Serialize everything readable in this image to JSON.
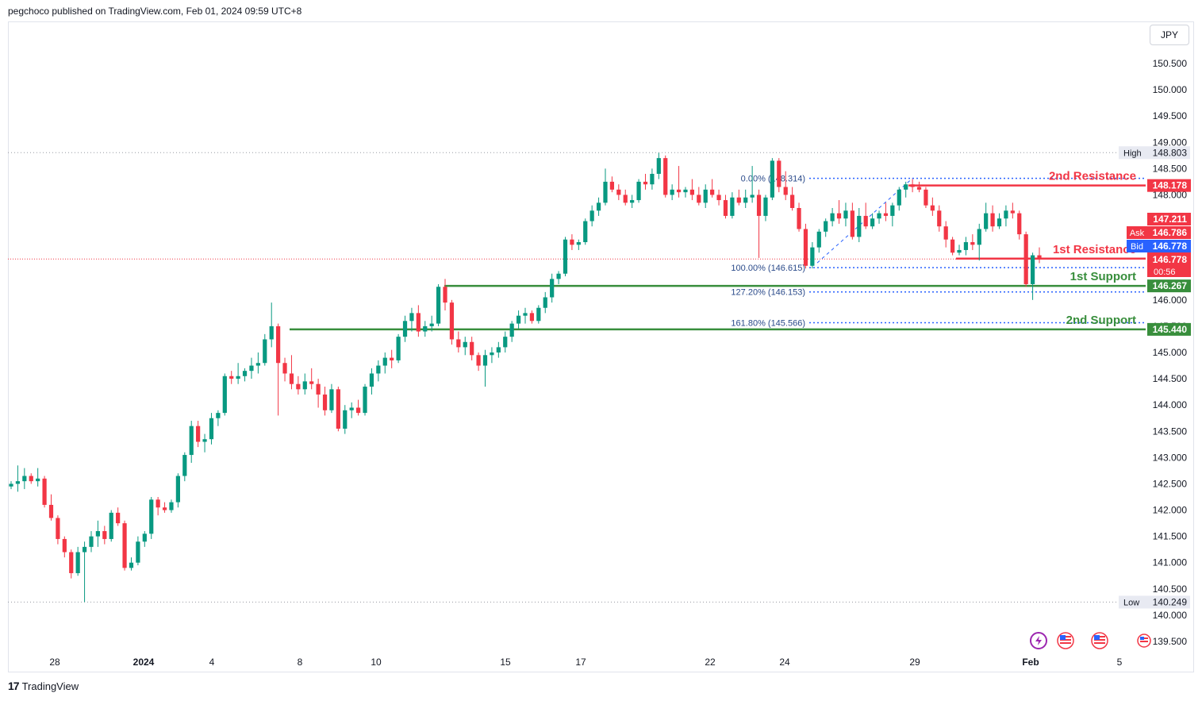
{
  "header": {
    "title": "pegchoco published on TradingView.com, Feb 01, 2024 09:59 UTC+8"
  },
  "currency_label": "JPY",
  "footer": {
    "brand": "TradingView",
    "logo": "17"
  },
  "colors": {
    "up": "#089981",
    "down": "#f23645",
    "support": "#388e3c",
    "resistance": "#f23645",
    "fib": "#2962ff",
    "bid": "#2962ff"
  },
  "icons": [
    "lightning-icon",
    "us-flag-icon",
    "us-flag-icon",
    "us-flag-icon"
  ],
  "chart_data": {
    "type": "candlestick",
    "symbol_currency": "JPY",
    "y_ticks": [
      139.5,
      140.0,
      140.5,
      141.0,
      141.5,
      142.0,
      142.5,
      143.0,
      143.5,
      144.0,
      144.5,
      145.0,
      145.5,
      146.0,
      146.5,
      147.0,
      147.5,
      148.0,
      148.5,
      149.0,
      149.5,
      150.0,
      150.5
    ],
    "y_tick_labels": [
      "139.500",
      "140.000",
      "140.500",
      "141.000",
      "141.500",
      "142.000",
      "142.500",
      "143.000",
      "143.500",
      "144.000",
      "144.500",
      "145.000",
      "145.500",
      "146.000",
      "146.500",
      "147.000",
      "147.500",
      "148.000",
      "148.500",
      "149.000",
      "149.500",
      "150.000",
      "150.500"
    ],
    "ylim": [
      139.3,
      151.0
    ],
    "x_labels": [
      "28",
      "2024",
      "4",
      "8",
      "10",
      "15",
      "17",
      "22",
      "24",
      "29",
      "Feb",
      "5"
    ],
    "high": {
      "label": "High",
      "value": "148.803"
    },
    "low": {
      "label": "Low",
      "value": "140.249"
    },
    "levels": [
      {
        "name": "2nd Resistance",
        "value": 148.178,
        "value_label": "148.178",
        "kind": "resistance"
      },
      {
        "name": "1st Resistance",
        "value": 146.786,
        "value_label": "146.786",
        "kind": "resistance"
      },
      {
        "name": "1st Support",
        "value": 146.267,
        "value_label": "146.267",
        "kind": "support"
      },
      {
        "name": "2nd Support",
        "value": 145.44,
        "value_label": "145.440",
        "kind": "support"
      }
    ],
    "fib_levels": [
      {
        "label": "0.00% (148.314)",
        "value": 148.314
      },
      {
        "label": "100.00% (146.615)",
        "value": 146.615
      },
      {
        "label": "127.20% (146.153)",
        "value": 146.153
      },
      {
        "label": "161.80% (145.566)",
        "value": 145.566
      }
    ],
    "price_tags": [
      {
        "label": "",
        "value": "147.211",
        "price": 147.211,
        "color": "#f23645"
      },
      {
        "label": "Ask",
        "value": "146.786",
        "price": 146.786,
        "color": "#f23645"
      },
      {
        "label": "Bid",
        "value": "146.778",
        "price": 146.778,
        "color": "#2962ff"
      },
      {
        "label": "",
        "value": "146.778",
        "price": 146.778,
        "color": "#f23645"
      }
    ],
    "countdown": "00:56",
    "candles": [
      [
        142.45,
        142.55,
        142.4,
        142.5
      ],
      [
        142.5,
        142.85,
        142.35,
        142.55
      ],
      [
        142.55,
        142.8,
        142.4,
        142.65
      ],
      [
        142.65,
        142.7,
        142.5,
        142.55
      ],
      [
        142.55,
        142.8,
        142.45,
        142.6
      ],
      [
        142.6,
        142.65,
        142.05,
        142.1
      ],
      [
        142.1,
        142.3,
        141.8,
        141.85
      ],
      [
        141.85,
        141.9,
        141.35,
        141.45
      ],
      [
        141.45,
        141.5,
        141.1,
        141.2
      ],
      [
        141.2,
        141.25,
        140.7,
        140.8
      ],
      [
        140.8,
        141.3,
        140.75,
        141.2
      ],
      [
        141.2,
        141.4,
        140.25,
        141.3
      ],
      [
        141.3,
        141.6,
        141.2,
        141.5
      ],
      [
        141.5,
        141.8,
        141.3,
        141.6
      ],
      [
        141.6,
        141.7,
        141.35,
        141.45
      ],
      [
        141.45,
        142.0,
        141.4,
        141.95
      ],
      [
        141.95,
        142.05,
        141.7,
        141.75
      ],
      [
        141.75,
        141.8,
        140.85,
        140.9
      ],
      [
        140.9,
        141.1,
        140.85,
        141.0
      ],
      [
        141.0,
        141.5,
        140.95,
        141.4
      ],
      [
        141.4,
        141.6,
        141.3,
        141.55
      ],
      [
        141.55,
        142.25,
        141.45,
        142.2
      ],
      [
        142.2,
        142.25,
        141.9,
        142.05
      ],
      [
        142.05,
        142.15,
        141.95,
        142.0
      ],
      [
        142.0,
        142.2,
        141.95,
        142.15
      ],
      [
        142.15,
        142.7,
        142.05,
        142.65
      ],
      [
        142.65,
        143.1,
        142.55,
        143.05
      ],
      [
        143.05,
        143.7,
        142.9,
        143.6
      ],
      [
        143.6,
        143.7,
        143.2,
        143.3
      ],
      [
        143.3,
        143.45,
        143.1,
        143.35
      ],
      [
        143.35,
        143.85,
        143.25,
        143.75
      ],
      [
        143.75,
        143.9,
        143.6,
        143.85
      ],
      [
        143.85,
        144.6,
        143.8,
        144.55
      ],
      [
        144.55,
        144.65,
        144.4,
        144.5
      ],
      [
        144.5,
        144.8,
        144.4,
        144.55
      ],
      [
        144.55,
        144.7,
        144.45,
        144.65
      ],
      [
        144.65,
        144.9,
        144.5,
        144.75
      ],
      [
        144.75,
        145.0,
        144.6,
        144.8
      ],
      [
        144.8,
        145.35,
        144.75,
        145.25
      ],
      [
        145.25,
        145.95,
        145.1,
        145.5
      ],
      [
        145.5,
        145.55,
        143.8,
        144.8
      ],
      [
        144.8,
        144.9,
        144.45,
        144.6
      ],
      [
        144.6,
        144.95,
        144.3,
        144.4
      ],
      [
        144.4,
        144.55,
        144.2,
        144.3
      ],
      [
        144.3,
        144.6,
        144.2,
        144.45
      ],
      [
        144.45,
        144.7,
        144.3,
        144.4
      ],
      [
        144.4,
        144.5,
        143.95,
        144.2
      ],
      [
        144.2,
        144.35,
        143.8,
        143.9
      ],
      [
        143.9,
        144.4,
        143.85,
        144.3
      ],
      [
        144.3,
        144.35,
        143.5,
        143.55
      ],
      [
        143.55,
        144.0,
        143.45,
        143.9
      ],
      [
        143.9,
        144.05,
        143.75,
        143.95
      ],
      [
        143.95,
        144.1,
        143.8,
        143.85
      ],
      [
        143.85,
        144.4,
        143.8,
        144.35
      ],
      [
        144.35,
        144.7,
        144.2,
        144.6
      ],
      [
        144.6,
        144.85,
        144.45,
        144.75
      ],
      [
        144.75,
        145.0,
        144.6,
        144.9
      ],
      [
        144.9,
        145.05,
        144.7,
        144.85
      ],
      [
        144.85,
        145.35,
        144.8,
        145.3
      ],
      [
        145.3,
        145.7,
        145.2,
        145.6
      ],
      [
        145.6,
        145.85,
        145.4,
        145.75
      ],
      [
        145.75,
        145.9,
        145.3,
        145.4
      ],
      [
        145.4,
        145.6,
        145.3,
        145.5
      ],
      [
        145.5,
        145.7,
        145.4,
        145.55
      ],
      [
        145.55,
        146.3,
        145.5,
        146.25
      ],
      [
        146.25,
        146.4,
        145.8,
        145.95
      ],
      [
        145.95,
        146.0,
        145.15,
        145.25
      ],
      [
        145.25,
        145.4,
        145.0,
        145.1
      ],
      [
        145.1,
        145.3,
        144.95,
        145.2
      ],
      [
        145.2,
        145.3,
        144.85,
        144.95
      ],
      [
        144.95,
        145.0,
        144.65,
        144.75
      ],
      [
        144.75,
        145.05,
        144.35,
        144.95
      ],
      [
        144.95,
        145.1,
        144.8,
        145.0
      ],
      [
        145.0,
        145.2,
        144.9,
        145.1
      ],
      [
        145.1,
        145.4,
        145.0,
        145.3
      ],
      [
        145.3,
        145.6,
        145.2,
        145.55
      ],
      [
        145.55,
        145.8,
        145.45,
        145.7
      ],
      [
        145.7,
        145.85,
        145.55,
        145.75
      ],
      [
        145.75,
        145.8,
        145.55,
        145.6
      ],
      [
        145.6,
        145.9,
        145.55,
        145.85
      ],
      [
        145.85,
        146.15,
        145.75,
        146.05
      ],
      [
        146.05,
        146.5,
        145.95,
        146.4
      ],
      [
        146.4,
        146.55,
        146.3,
        146.5
      ],
      [
        146.5,
        147.2,
        146.45,
        147.15
      ],
      [
        147.15,
        147.25,
        146.95,
        147.05
      ],
      [
        147.05,
        147.15,
        146.95,
        147.1
      ],
      [
        147.1,
        147.55,
        147.05,
        147.5
      ],
      [
        147.5,
        147.8,
        147.4,
        147.7
      ],
      [
        147.7,
        147.95,
        147.6,
        147.85
      ],
      [
        147.85,
        148.5,
        147.8,
        148.25
      ],
      [
        148.25,
        148.35,
        148.05,
        148.1
      ],
      [
        148.1,
        148.2,
        147.9,
        148.0
      ],
      [
        148.0,
        148.1,
        147.8,
        147.85
      ],
      [
        147.85,
        148.0,
        147.75,
        147.9
      ],
      [
        147.9,
        148.3,
        147.85,
        148.25
      ],
      [
        148.25,
        148.4,
        148.1,
        148.2
      ],
      [
        148.2,
        148.5,
        148.1,
        148.4
      ],
      [
        148.4,
        148.8,
        148.3,
        148.7
      ],
      [
        148.7,
        148.75,
        147.95,
        148.0
      ],
      [
        148.0,
        148.2,
        147.9,
        148.1
      ],
      [
        148.1,
        148.55,
        147.95,
        148.05
      ],
      [
        148.05,
        148.15,
        147.95,
        148.1
      ],
      [
        148.1,
        148.3,
        147.9,
        148.0
      ],
      [
        148.0,
        148.15,
        147.8,
        147.85
      ],
      [
        147.85,
        148.2,
        147.75,
        148.1
      ],
      [
        148.1,
        148.3,
        147.95,
        148.0
      ],
      [
        148.0,
        148.1,
        147.8,
        147.9
      ],
      [
        147.9,
        148.0,
        147.55,
        147.6
      ],
      [
        147.6,
        148.05,
        147.55,
        147.95
      ],
      [
        147.95,
        148.1,
        147.8,
        147.85
      ],
      [
        147.85,
        148.1,
        147.75,
        147.95
      ],
      [
        147.95,
        148.55,
        147.85,
        148.0
      ],
      [
        148.0,
        148.1,
        146.8,
        147.6
      ],
      [
        147.6,
        148.0,
        147.5,
        147.95
      ],
      [
        147.95,
        148.7,
        147.9,
        148.65
      ],
      [
        148.65,
        148.7,
        148.05,
        148.15
      ],
      [
        148.15,
        148.45,
        147.9,
        148.0
      ],
      [
        148.0,
        148.15,
        147.7,
        147.75
      ],
      [
        147.75,
        147.85,
        147.3,
        147.35
      ],
      [
        147.35,
        147.45,
        146.6,
        146.65
      ],
      [
        146.65,
        147.1,
        146.6,
        147.0
      ],
      [
        147.0,
        147.35,
        146.9,
        147.3
      ],
      [
        147.3,
        147.55,
        147.2,
        147.5
      ],
      [
        147.5,
        147.75,
        147.4,
        147.65
      ],
      [
        147.65,
        147.9,
        147.45,
        147.55
      ],
      [
        147.55,
        147.85,
        147.4,
        147.7
      ],
      [
        147.7,
        147.85,
        147.15,
        147.2
      ],
      [
        147.2,
        147.75,
        147.1,
        147.6
      ],
      [
        147.6,
        147.85,
        147.35,
        147.4
      ],
      [
        147.4,
        147.65,
        147.35,
        147.55
      ],
      [
        147.55,
        147.7,
        147.45,
        147.65
      ],
      [
        147.65,
        147.85,
        147.5,
        147.6
      ],
      [
        147.6,
        147.85,
        147.4,
        147.8
      ],
      [
        147.8,
        148.15,
        147.7,
        148.1
      ],
      [
        148.1,
        148.25,
        147.95,
        148.2
      ],
      [
        148.2,
        148.3,
        148.05,
        148.15
      ],
      [
        148.15,
        148.25,
        148.05,
        148.1
      ],
      [
        148.1,
        148.15,
        147.75,
        147.8
      ],
      [
        147.8,
        147.95,
        147.6,
        147.7
      ],
      [
        147.7,
        147.8,
        147.3,
        147.4
      ],
      [
        147.4,
        147.5,
        147.0,
        147.15
      ],
      [
        147.15,
        147.2,
        146.85,
        146.9
      ],
      [
        146.9,
        147.05,
        146.85,
        146.95
      ],
      [
        146.95,
        147.2,
        146.85,
        147.1
      ],
      [
        147.1,
        147.25,
        146.95,
        147.05
      ],
      [
        147.05,
        147.45,
        146.75,
        147.35
      ],
      [
        147.35,
        147.85,
        147.3,
        147.65
      ],
      [
        147.65,
        147.8,
        147.3,
        147.4
      ],
      [
        147.4,
        147.65,
        147.35,
        147.55
      ],
      [
        147.55,
        147.8,
        147.4,
        147.7
      ],
      [
        147.7,
        147.85,
        147.55,
        147.65
      ],
      [
        147.65,
        147.7,
        147.15,
        147.25
      ],
      [
        147.25,
        147.3,
        146.25,
        146.3
      ],
      [
        146.3,
        146.9,
        146.0,
        146.85
      ],
      [
        146.85,
        147.0,
        146.7,
        146.78
      ]
    ]
  }
}
